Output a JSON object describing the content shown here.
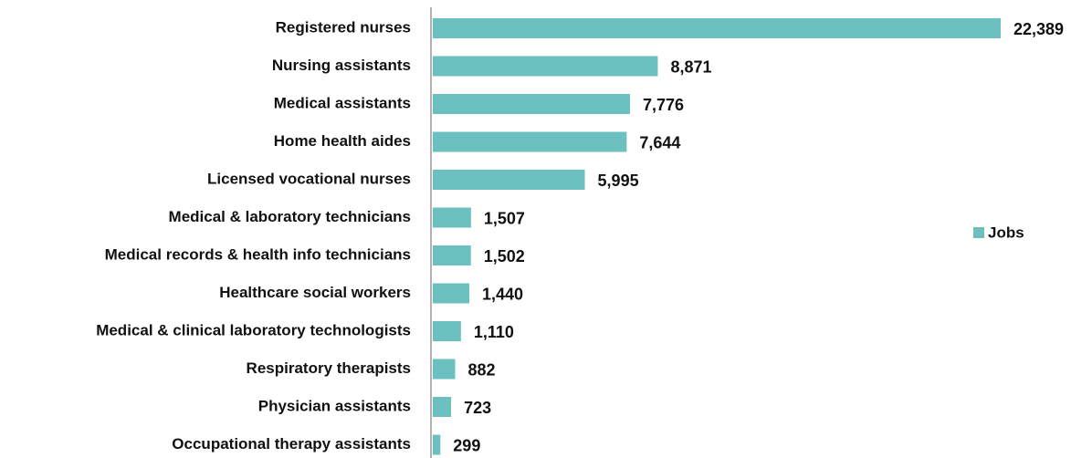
{
  "chart_data": {
    "type": "barh",
    "categories": [
      "Registered nurses",
      "Nursing assistants",
      "Medical assistants",
      "Home health aides",
      "Licensed vocational nurses",
      "Medical & laboratory technicians",
      "Medical records & health info technicians",
      "Healthcare social workers",
      "Medical & clinical laboratory technologists",
      "Respiratory therapists",
      "Physician assistants",
      "Occupational therapy assistants"
    ],
    "series": [
      {
        "name": "Jobs",
        "color": "#6cc0c0",
        "values": [
          22389,
          8871,
          7776,
          7644,
          5995,
          1507,
          1502,
          1440,
          1110,
          882,
          723,
          299
        ],
        "value_labels": [
          "22,389",
          "8,871",
          "7,776",
          "7,644",
          "5,995",
          "1,507",
          "1,502",
          "1,440",
          "1,110",
          "882",
          "723",
          "299"
        ]
      }
    ],
    "legend": "right"
  }
}
